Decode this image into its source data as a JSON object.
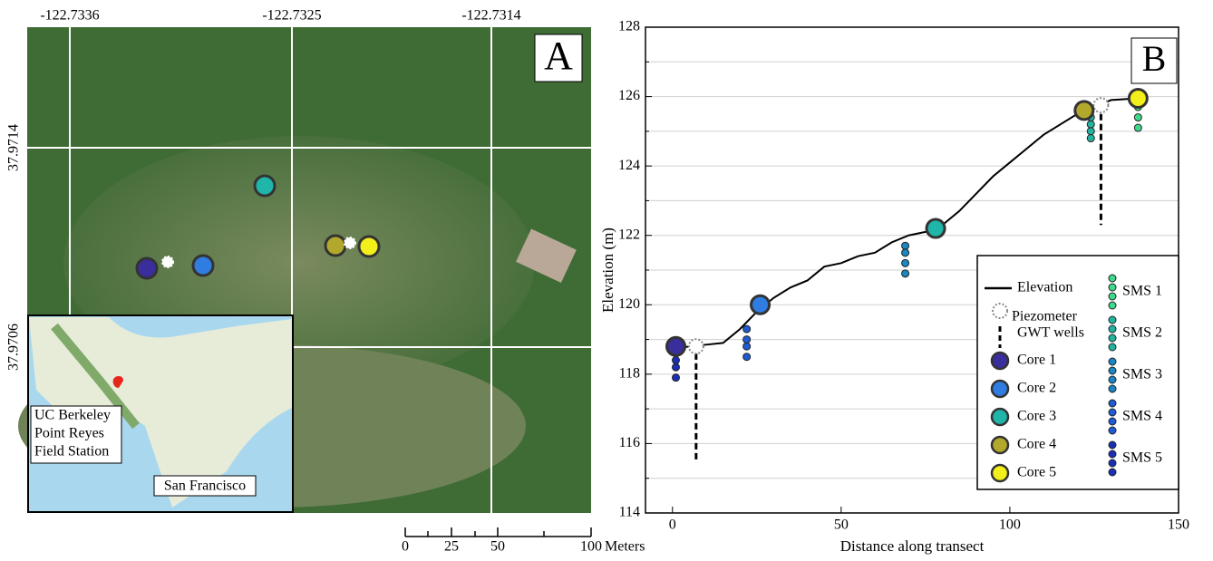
{
  "panel_a": {
    "label": "A",
    "lon_ticks": [
      "-122.7336",
      "-122.7325",
      "-122.7314"
    ],
    "lat_ticks": [
      "37.9714",
      "37.9706"
    ],
    "inset": {
      "site": [
        "UC Berkeley",
        "Point Reyes",
        "Field Station"
      ],
      "city": "San Francisco"
    },
    "scale": {
      "ticks": [
        "0",
        "25",
        "50",
        "100"
      ],
      "unit": "Meters"
    }
  },
  "chart_data": {
    "type": "line",
    "label": "B",
    "x_label": "Distance along transect",
    "y_label": "Elevation (m)",
    "xlim": [
      -8,
      150
    ],
    "xticks": [
      0,
      50,
      100,
      150
    ],
    "ylim": [
      114,
      128
    ],
    "yticks": [
      114,
      116,
      118,
      120,
      122,
      124,
      126,
      128
    ],
    "yminor": [
      115,
      117,
      119,
      121,
      123,
      125,
      127
    ],
    "grid": true,
    "elevation": {
      "name": "Elevation",
      "color": "#000000",
      "x": [
        0,
        2,
        5,
        10,
        15,
        20,
        25,
        30,
        35,
        40,
        45,
        50,
        55,
        60,
        65,
        70,
        75,
        80,
        85,
        90,
        95,
        100,
        105,
        110,
        115,
        120,
        125,
        130,
        138
      ],
      "values": [
        118.7,
        118.75,
        118.8,
        118.85,
        118.9,
        119.3,
        119.8,
        120.2,
        120.5,
        120.7,
        121.1,
        121.2,
        121.4,
        121.5,
        121.8,
        122.0,
        122.1,
        122.3,
        122.7,
        123.2,
        123.7,
        124.1,
        124.5,
        124.9,
        125.2,
        125.5,
        125.7,
        125.9,
        125.95
      ]
    },
    "piezometers": {
      "name": "Piezometer",
      "x": [
        7,
        127
      ],
      "values": [
        118.8,
        125.75
      ]
    },
    "wells": {
      "name": "GWT wells",
      "x": [
        7,
        127
      ],
      "top": [
        118.6,
        125.5
      ],
      "bottom": [
        115.5,
        122.3
      ]
    },
    "cores": [
      {
        "name": "Core 1",
        "color": "#3a2d9c",
        "x": 1,
        "y": 118.8
      },
      {
        "name": "Core 2",
        "color": "#2f7de1",
        "x": 26,
        "y": 120
      },
      {
        "name": "Core 3",
        "color": "#1fb5a8",
        "x": 78,
        "y": 122.2
      },
      {
        "name": "Core 4",
        "color": "#b2a82c",
        "x": 122,
        "y": 125.6
      },
      {
        "name": "Core 5",
        "color": "#f2ef1a",
        "x": 138,
        "y": 125.95
      }
    ],
    "sms": [
      {
        "name": "SMS 1",
        "color": "#3ed98a",
        "x": [
          138,
          138,
          138
        ],
        "values": [
          125.7,
          125.4,
          125.1
        ]
      },
      {
        "name": "SMS 2",
        "color": "#22b3a0",
        "x": [
          124,
          124,
          124,
          124
        ],
        "values": [
          125.4,
          125.2,
          125.0,
          124.8
        ]
      },
      {
        "name": "SMS 3",
        "color": "#1a86c2",
        "x": [
          69,
          69,
          69,
          69
        ],
        "values": [
          121.7,
          121.5,
          121.2,
          120.9
        ]
      },
      {
        "name": "SMS 4",
        "color": "#1e5bd4",
        "x": [
          22,
          22,
          22,
          22
        ],
        "values": [
          119.3,
          119.0,
          118.8,
          118.5
        ]
      },
      {
        "name": "SMS 5",
        "color": "#1a2fb5",
        "x": [
          1,
          1,
          1,
          1
        ],
        "values": [
          118.6,
          118.4,
          118.2,
          117.9
        ]
      }
    ]
  }
}
